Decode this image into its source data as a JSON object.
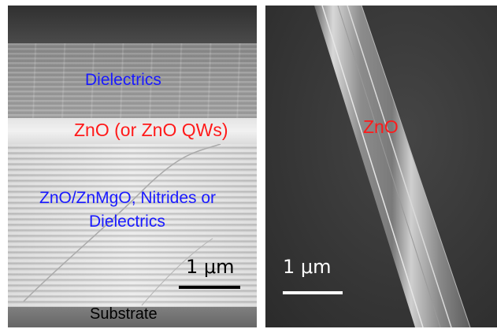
{
  "figure": {
    "left_panel": {
      "labels": {
        "dielectrics": "Dielectrics",
        "zno_layer": "ZnO (or ZnO QWs)",
        "bottom_mirror_line1": "ZnO/ZnMgO, Nitrides or",
        "bottom_mirror_line2": "Dielectrics",
        "substrate": "Substrate"
      },
      "scale_bar": {
        "label": "1 μm",
        "color": "#000000"
      }
    },
    "right_panel": {
      "labels": {
        "nanowire": "ZnO"
      },
      "scale_bar": {
        "label": "1 μm",
        "color": "#ffffff"
      }
    },
    "colors": {
      "label_blue": "#1a1aff",
      "label_red": "#ff1a1a"
    }
  }
}
